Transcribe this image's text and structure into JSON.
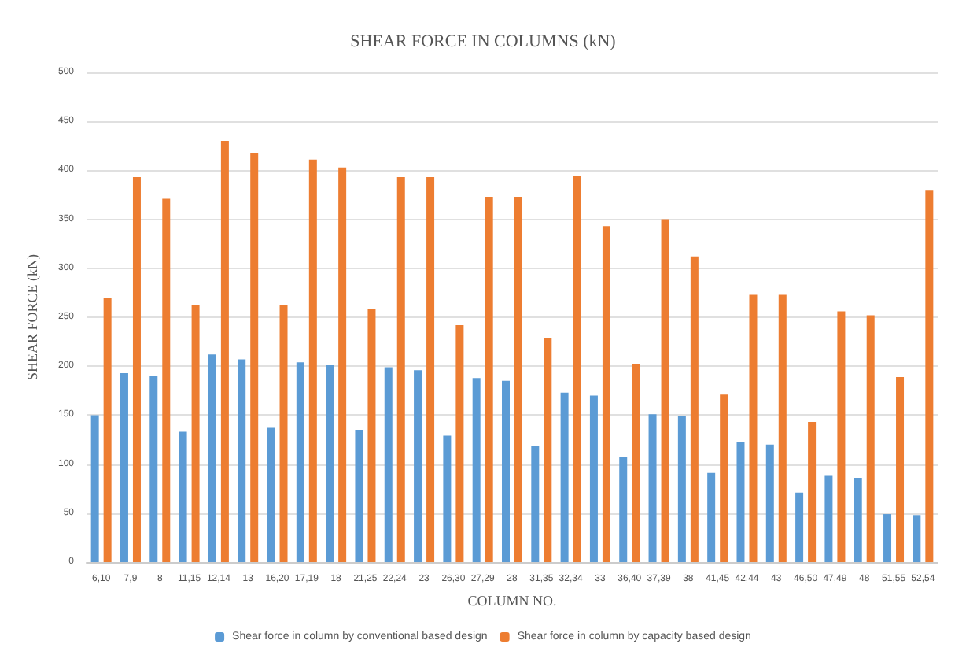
{
  "chart_data": {
    "type": "bar",
    "title": "SHEAR FORCE IN COLUMNS (kN)",
    "xlabel": "COLUMN NO.",
    "ylabel": "SHEAR FORCE (kN)",
    "categories": [
      "6,10",
      "7,9",
      "8",
      "11,15",
      "12,14",
      "13",
      "16,20",
      "17,19",
      "18",
      "21,25",
      "22,24",
      "23",
      "26,30",
      "27,29",
      "28",
      "31,35",
      "32,34",
      "33",
      "36,40",
      "37,39",
      "38",
      "41,45",
      "42,44",
      "43",
      "46,50",
      "47,49",
      "48",
      "51,55",
      "52,54"
    ],
    "series": [
      {
        "name": "Shear force in column by conventional based design",
        "color": "#5b9bd5",
        "values": [
          150,
          193,
          190,
          133,
          212,
          207,
          137,
          204,
          201,
          135,
          199,
          196,
          129,
          188,
          185,
          119,
          173,
          170,
          107,
          151,
          149,
          91,
          123,
          120,
          71,
          88,
          86,
          49,
          48
        ]
      },
      {
        "name": "Shear force in column by capacity based design",
        "color": "#ed7d31",
        "values": [
          270,
          393,
          371,
          262,
          430,
          418,
          262,
          411,
          403,
          258,
          393,
          393,
          242,
          373,
          373,
          229,
          394,
          343,
          202,
          350,
          312,
          171,
          273,
          273,
          143,
          256,
          252,
          189,
          380
        ]
      }
    ],
    "ylim": [
      0,
      500
    ],
    "yticks": [
      0,
      50,
      100,
      150,
      200,
      250,
      300,
      350,
      400,
      450,
      500
    ],
    "grid": "y",
    "legend": "bottom"
  }
}
